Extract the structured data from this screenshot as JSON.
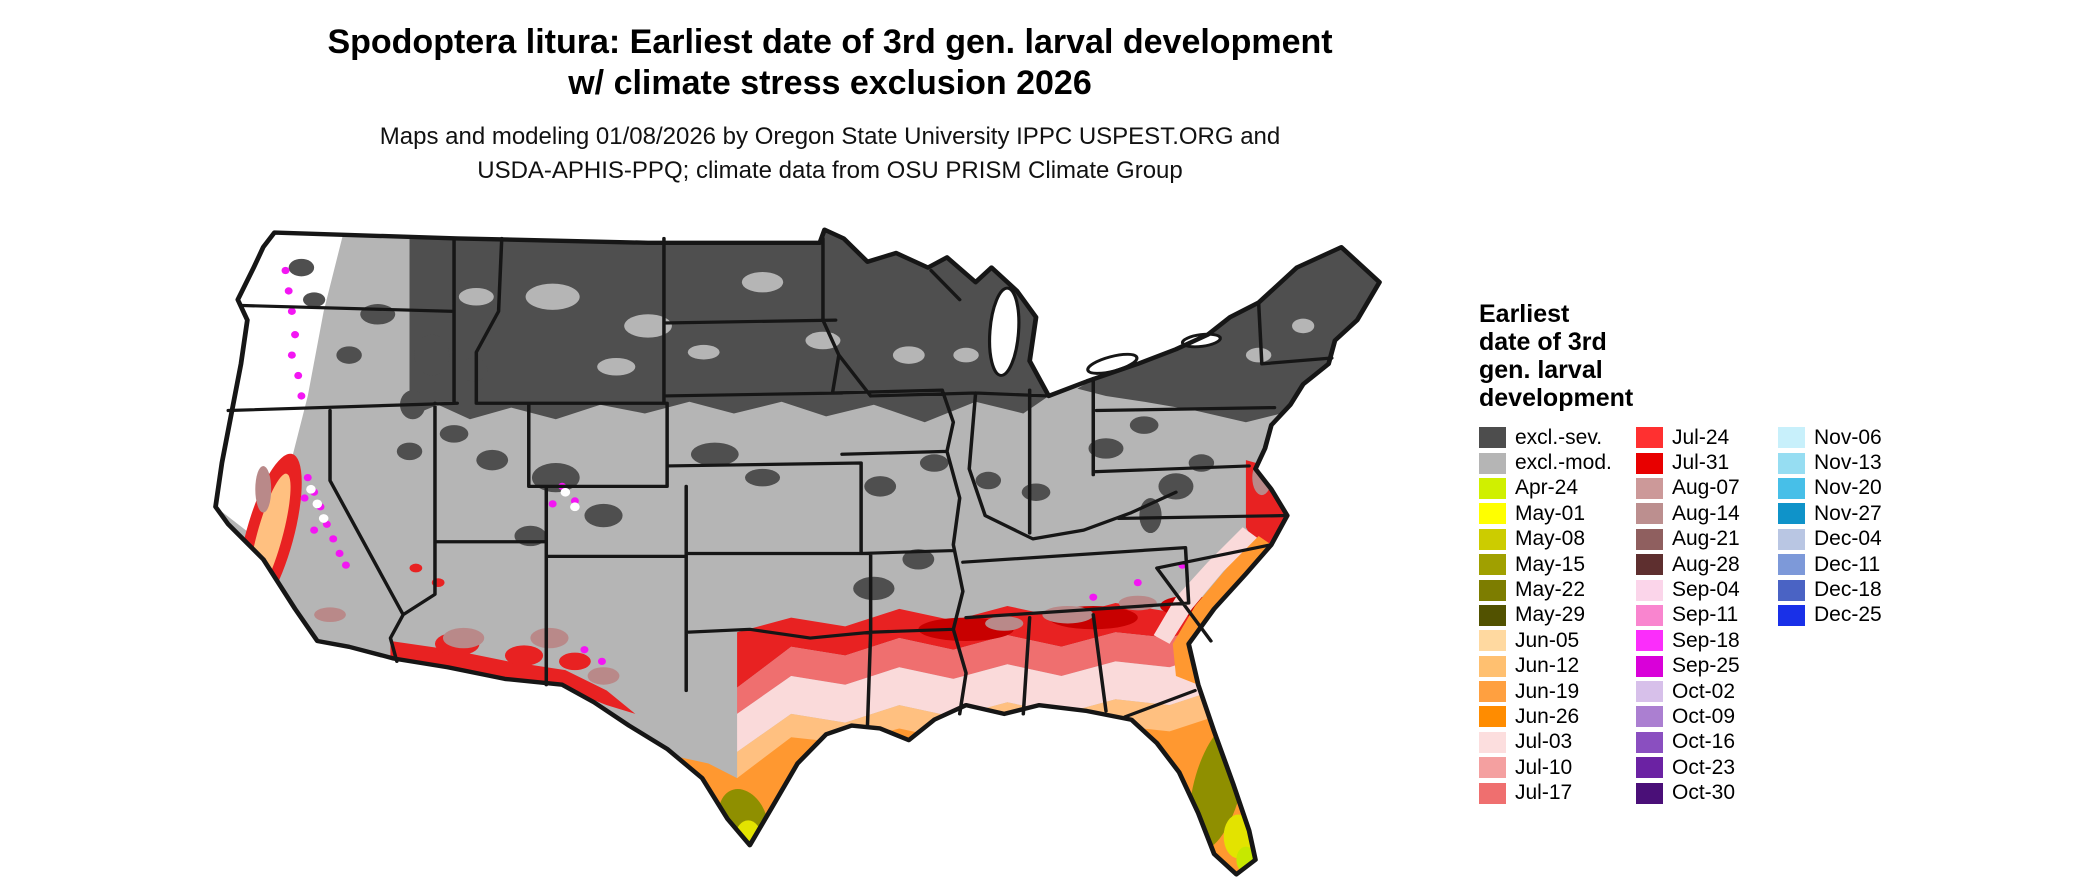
{
  "header": {
    "title_line1": "Spodoptera litura: Earliest date of 3rd gen. larval development",
    "title_line2": "w/ climate stress exclusion 2026",
    "subtitle_line1": "Maps and modeling 01/08/2026 by Oregon State University IPPC USPEST.ORG and",
    "subtitle_line2": "USDA-APHIS-PPQ; climate data from OSU PRISM Climate Group"
  },
  "legend": {
    "title_lines": [
      "Earliest",
      "date of 3rd",
      "gen. larval",
      "development"
    ],
    "columns": [
      {
        "items": [
          {
            "label": "excl.-sev.",
            "color": "#4d4d4d"
          },
          {
            "label": "excl.-mod.",
            "color": "#b5b5b5"
          },
          {
            "label": "Apr-24",
            "color": "#d0f000"
          },
          {
            "label": "May-01",
            "color": "#ffff00"
          },
          {
            "label": "May-08",
            "color": "#cccc00"
          },
          {
            "label": "May-15",
            "color": "#a0a000"
          },
          {
            "label": "May-22",
            "color": "#7d7d00"
          },
          {
            "label": "May-29",
            "color": "#525200"
          },
          {
            "label": "Jun-05",
            "color": "#ffd9a0"
          },
          {
            "label": "Jun-12",
            "color": "#ffc070"
          },
          {
            "label": "Jun-19",
            "color": "#ffa040"
          },
          {
            "label": "Jun-26",
            "color": "#ff8c00"
          },
          {
            "label": "Jul-03",
            "color": "#fcdede"
          },
          {
            "label": "Jul-10",
            "color": "#f4a0a0"
          },
          {
            "label": "Jul-17",
            "color": "#ef6f6f"
          }
        ]
      },
      {
        "items": [
          {
            "label": "Jul-24",
            "color": "#ff3030"
          },
          {
            "label": "Jul-31",
            "color": "#e80000"
          },
          {
            "label": "Aug-07",
            "color": "#cc9999"
          },
          {
            "label": "Aug-14",
            "color": "#bc8f8f"
          },
          {
            "label": "Aug-21",
            "color": "#8f5f5f"
          },
          {
            "label": "Aug-28",
            "color": "#5e2f2f"
          },
          {
            "label": "Sep-04",
            "color": "#fbd5ea"
          },
          {
            "label": "Sep-11",
            "color": "#f985cf"
          },
          {
            "label": "Sep-18",
            "color": "#fb2dfb"
          },
          {
            "label": "Sep-25",
            "color": "#d900d9"
          },
          {
            "label": "Oct-02",
            "color": "#d7c0ea"
          },
          {
            "label": "Oct-09",
            "color": "#ab7fd1"
          },
          {
            "label": "Oct-16",
            "color": "#8a4fc0"
          },
          {
            "label": "Oct-23",
            "color": "#6b22a3"
          },
          {
            "label": "Oct-30",
            "color": "#4a0f78"
          }
        ]
      },
      {
        "items": [
          {
            "label": "Nov-06",
            "color": "#c8f0fb"
          },
          {
            "label": "Nov-13",
            "color": "#96ddf2"
          },
          {
            "label": "Nov-20",
            "color": "#47bfe8"
          },
          {
            "label": "Nov-27",
            "color": "#0f93c9"
          },
          {
            "label": "Dec-04",
            "color": "#b9c6e3"
          },
          {
            "label": "Dec-11",
            "color": "#7d99d9"
          },
          {
            "label": "Dec-18",
            "color": "#4a63c4"
          },
          {
            "label": "Dec-25",
            "color": "#1930e8"
          }
        ]
      }
    ]
  },
  "map_colors": {
    "base": "#b5b5b5",
    "dark": "#4f4f4f",
    "red": "#e82222",
    "red_deep": "#c80000",
    "salmon": "#ef6f6f",
    "pale_pink": "#fadada",
    "lt_orange": "#ffc080",
    "orange": "#ff9830",
    "olive": "#8f8f00",
    "yellow": "#e3e300",
    "yellow_green": "#c6e800",
    "brown": "#b98989",
    "magenta": "#f316f3",
    "white": "#ffffff",
    "border": "#161616"
  }
}
